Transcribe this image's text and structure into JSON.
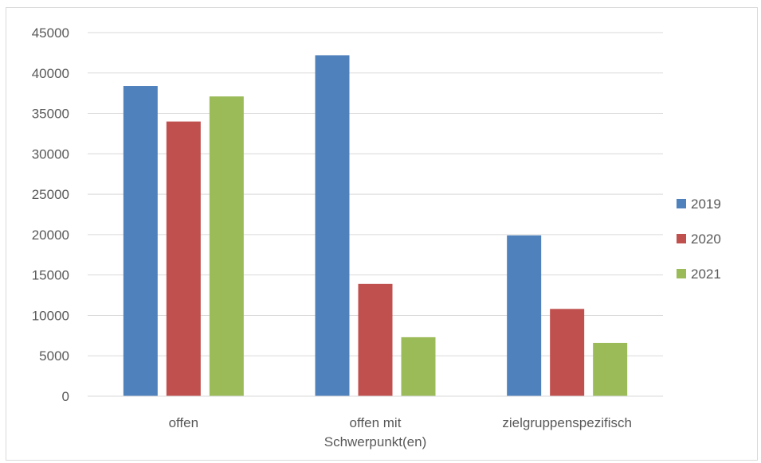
{
  "chart_data": {
    "type": "bar",
    "title": "",
    "xlabel": "",
    "ylabel": "",
    "categories": [
      "offen",
      "offen mit Schwerpunkt(en)",
      "zielgruppenspezifisch"
    ],
    "category_lines": [
      [
        "offen"
      ],
      [
        "offen mit",
        "Schwerpunkt(en)"
      ],
      [
        "zielgruppenspezifisch"
      ]
    ],
    "series": [
      {
        "name": "2019",
        "color": "#4f81bd",
        "values": [
          38400,
          42200,
          19900
        ]
      },
      {
        "name": "2020",
        "color": "#c0504d",
        "values": [
          34000,
          13900,
          10800
        ]
      },
      {
        "name": "2021",
        "color": "#9bbb59",
        "values": [
          37100,
          7300,
          6600
        ]
      }
    ],
    "ylim": [
      0,
      45000
    ],
    "yticks": [
      0,
      5000,
      10000,
      15000,
      20000,
      25000,
      30000,
      35000,
      40000,
      45000
    ],
    "grid": true,
    "legend_position": "right"
  }
}
